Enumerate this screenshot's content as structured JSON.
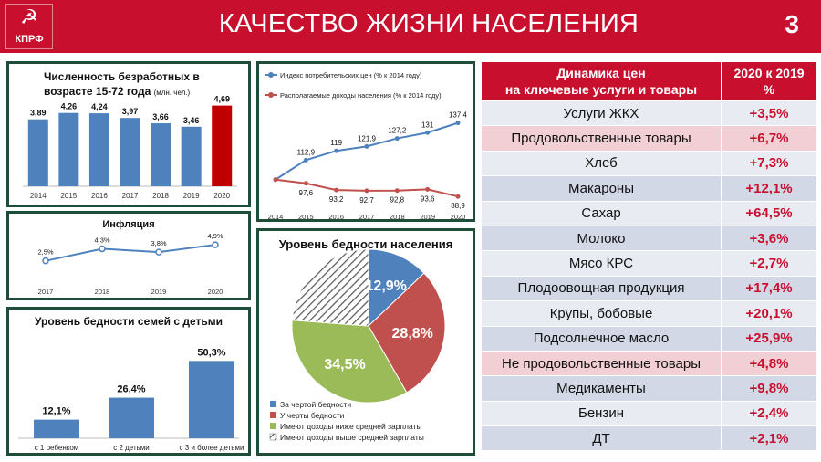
{
  "header": {
    "logo_text": "КПРФ",
    "title": "КАЧЕСТВО ЖИЗНИ НАСЕЛЕНИЯ",
    "page_number": "3"
  },
  "colors": {
    "accent_red": "#c8102e",
    "bar_blue": "#4f81bd",
    "highlight_red": "#c00000",
    "panel_border": "#1e4d3a",
    "green": "#9bbb59"
  },
  "chart_data": [
    {
      "id": "unemployment",
      "type": "bar",
      "title": "Численность безработных в возрасте 15-72 года",
      "unit": "(млн. чел.)",
      "categories": [
        "2014",
        "2015",
        "2016",
        "2017",
        "2018",
        "2019",
        "2020"
      ],
      "values": [
        3.89,
        4.26,
        4.24,
        3.97,
        3.66,
        3.46,
        4.69
      ],
      "labels": [
        "3,89",
        "4,26",
        "4,24",
        "3,97",
        "3,66",
        "3,46",
        "4,69"
      ],
      "highlight_index": 6,
      "ylim": [
        0,
        5.2
      ]
    },
    {
      "id": "cpi_income",
      "type": "line",
      "categories": [
        "2014",
        "2015",
        "2016",
        "2017",
        "2018",
        "2019",
        "2020"
      ],
      "ylim": [
        80,
        145
      ],
      "series": [
        {
          "name": "Индекс потребительских цен (% к 2014 году)",
          "color": "#4f81bd",
          "values": [
            100,
            112.9,
            119,
            121.9,
            127.2,
            131,
            137.4
          ],
          "labels": [
            "",
            "112,9",
            "119",
            "121,9",
            "127,2",
            "131",
            "137,4"
          ]
        },
        {
          "name": "Располагаемые доходы населения (% к 2014 году)",
          "color": "#c0504d",
          "values": [
            100,
            97.6,
            93.2,
            92.7,
            92.8,
            93.6,
            88.9
          ],
          "labels": [
            "",
            "97,6",
            "93,2",
            "92,7",
            "92,8",
            "93,6",
            "88,9"
          ]
        }
      ]
    },
    {
      "id": "inflation",
      "type": "line",
      "title": "Инфляция",
      "categories": [
        "2017",
        "2018",
        "2019",
        "2020"
      ],
      "values": [
        2.5,
        4.3,
        3.8,
        4.9
      ],
      "labels": [
        "2,5%",
        "4,3%",
        "3,8%",
        "4,9%"
      ],
      "ylim": [
        0,
        6
      ]
    },
    {
      "id": "family_poverty",
      "type": "bar",
      "title": "Уровень бедности семей с детьми",
      "categories": [
        "с 1 ребенком",
        "с 2 детьми",
        "с 3 и более детьми"
      ],
      "values": [
        12.1,
        26.4,
        50.3
      ],
      "labels": [
        "12,1%",
        "26,4%",
        "50,3%"
      ],
      "ylim": [
        0,
        60
      ]
    },
    {
      "id": "poverty_level",
      "type": "pie",
      "title": "Уровень бедности населения",
      "slices": [
        {
          "name": "За чертой бедности",
          "value": 12.9,
          "label": "12,9%",
          "color": "#4f81bd"
        },
        {
          "name": "У черты бедности",
          "value": 28.8,
          "label": "28,8%",
          "color": "#c0504d"
        },
        {
          "name": "Имеют доходы ниже средней зарплаты",
          "value": 34.5,
          "label": "34,5%",
          "color": "#9bbb59"
        },
        {
          "name": "Имеют доходы выше средней зарплаты",
          "value": 23.8,
          "label": "",
          "color": "hatched"
        }
      ]
    },
    {
      "id": "prices",
      "type": "table",
      "header": [
        "Динамика цен на ключевые услуги и товары",
        "2020 к 2019 %"
      ],
      "rows": [
        {
          "name": "Услуги ЖКХ",
          "value": "+3,5%",
          "category": false
        },
        {
          "name": "Продовольственные товары",
          "value": "+6,7%",
          "category": true
        },
        {
          "name": "Хлеб",
          "value": "+7,3%",
          "category": false
        },
        {
          "name": "Макароны",
          "value": "+12,1%",
          "category": false
        },
        {
          "name": "Сахар",
          "value": "+64,5%",
          "category": false
        },
        {
          "name": "Молоко",
          "value": "+3,6%",
          "category": false
        },
        {
          "name": "Мясо КРС",
          "value": "+2,7%",
          "category": false
        },
        {
          "name": "Плодоовощная продукция",
          "value": "+17,4%",
          "category": false
        },
        {
          "name": "Крупы, бобовые",
          "value": "+20,1%",
          "category": false
        },
        {
          "name": "Подсолнечное масло",
          "value": "+25,9%",
          "category": false
        },
        {
          "name": "Не продовольственные товары",
          "value": "+4,8%",
          "category": true
        },
        {
          "name": "Медикаменты",
          "value": "+9,8%",
          "category": false
        },
        {
          "name": "Бензин",
          "value": "+2,4%",
          "category": false
        },
        {
          "name": "ДТ",
          "value": "+2,1%",
          "category": false
        }
      ]
    }
  ]
}
